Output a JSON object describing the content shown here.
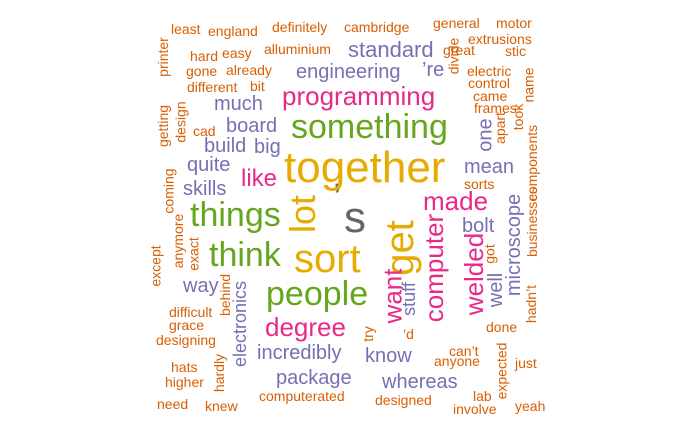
{
  "palette": {
    "gray": "#666666",
    "orange": "#D95F02",
    "purple": "#7570B3",
    "pink": "#E7298A",
    "green": "#66A61E",
    "gold": "#E6AB02"
  },
  "words": [
    {
      "text": "s",
      "color": "gray"
    },
    {
      "text": "’",
      "color": "gray"
    },
    {
      "text": "together",
      "color": "gold"
    },
    {
      "text": "sort",
      "color": "gold"
    },
    {
      "text": "get",
      "color": "gold"
    },
    {
      "text": "lot",
      "color": "gold"
    },
    {
      "text": "something",
      "color": "green"
    },
    {
      "text": "things",
      "color": "green"
    },
    {
      "text": "think",
      "color": "green"
    },
    {
      "text": "people",
      "color": "green"
    },
    {
      "text": "programming",
      "color": "pink"
    },
    {
      "text": "made",
      "color": "pink"
    },
    {
      "text": "computer",
      "color": "pink"
    },
    {
      "text": "welded",
      "color": "pink"
    },
    {
      "text": "want",
      "color": "pink"
    },
    {
      "text": "degree",
      "color": "pink"
    },
    {
      "text": "like",
      "color": "pink"
    },
    {
      "text": "standard",
      "color": "purple"
    },
    {
      "text": "engineering",
      "color": "purple"
    },
    {
      "text": "’re",
      "color": "purple"
    },
    {
      "text": "much",
      "color": "purple"
    },
    {
      "text": "board",
      "color": "purple"
    },
    {
      "text": "build",
      "color": "purple"
    },
    {
      "text": "big",
      "color": "purple"
    },
    {
      "text": "quite",
      "color": "purple"
    },
    {
      "text": "skills",
      "color": "purple"
    },
    {
      "text": "mean",
      "color": "purple"
    },
    {
      "text": "one",
      "color": "purple"
    },
    {
      "text": "bolt",
      "color": "purple"
    },
    {
      "text": "microscope",
      "color": "purple"
    },
    {
      "text": "well",
      "color": "purple"
    },
    {
      "text": "way",
      "color": "purple"
    },
    {
      "text": "electronics",
      "color": "purple"
    },
    {
      "text": "stuff",
      "color": "purple"
    },
    {
      "text": "incredibly",
      "color": "purple"
    },
    {
      "text": "know",
      "color": "purple"
    },
    {
      "text": "package",
      "color": "purple"
    },
    {
      "text": "whereas",
      "color": "purple"
    },
    {
      "text": "least",
      "color": "orange"
    },
    {
      "text": "england",
      "color": "orange"
    },
    {
      "text": "definitely",
      "color": "orange"
    },
    {
      "text": "cambridge",
      "color": "orange"
    },
    {
      "text": "general",
      "color": "orange"
    },
    {
      "text": "motor",
      "color": "orange"
    },
    {
      "text": "printer",
      "color": "orange"
    },
    {
      "text": "hard",
      "color": "orange"
    },
    {
      "text": "easy",
      "color": "orange"
    },
    {
      "text": "alluminium",
      "color": "orange"
    },
    {
      "text": "great",
      "color": "orange"
    },
    {
      "text": "stic",
      "color": "orange"
    },
    {
      "text": "extrusions",
      "color": "orange"
    },
    {
      "text": "gone",
      "color": "orange"
    },
    {
      "text": "already",
      "color": "orange"
    },
    {
      "text": "divide",
      "color": "orange"
    },
    {
      "text": "electric",
      "color": "orange"
    },
    {
      "text": "control",
      "color": "orange"
    },
    {
      "text": "name",
      "color": "orange"
    },
    {
      "text": "different",
      "color": "orange"
    },
    {
      "text": "bit",
      "color": "orange"
    },
    {
      "text": "came",
      "color": "orange"
    },
    {
      "text": "frames",
      "color": "orange"
    },
    {
      "text": "getting",
      "color": "orange"
    },
    {
      "text": "design",
      "color": "orange"
    },
    {
      "text": "cad",
      "color": "orange"
    },
    {
      "text": "apart",
      "color": "orange"
    },
    {
      "text": "took",
      "color": "orange"
    },
    {
      "text": "components",
      "color": "orange"
    },
    {
      "text": "coming",
      "color": "orange"
    },
    {
      "text": "sorts",
      "color": "orange"
    },
    {
      "text": "businesses",
      "color": "orange"
    },
    {
      "text": "anymore",
      "color": "orange"
    },
    {
      "text": "exact",
      "color": "orange"
    },
    {
      "text": "except",
      "color": "orange"
    },
    {
      "text": "got",
      "color": "orange"
    },
    {
      "text": "behind",
      "color": "orange"
    },
    {
      "text": "difficult",
      "color": "orange"
    },
    {
      "text": "grace",
      "color": "orange"
    },
    {
      "text": "designing",
      "color": "orange"
    },
    {
      "text": "hadn’t",
      "color": "orange"
    },
    {
      "text": "done",
      "color": "orange"
    },
    {
      "text": "try",
      "color": "orange"
    },
    {
      "text": "’d",
      "color": "orange"
    },
    {
      "text": "can’t",
      "color": "orange"
    },
    {
      "text": "anyone",
      "color": "orange"
    },
    {
      "text": "expected",
      "color": "orange"
    },
    {
      "text": "just",
      "color": "orange"
    },
    {
      "text": "hats",
      "color": "orange"
    },
    {
      "text": "hardly",
      "color": "orange"
    },
    {
      "text": "higher",
      "color": "orange"
    },
    {
      "text": "lab",
      "color": "orange"
    },
    {
      "text": "need",
      "color": "orange"
    },
    {
      "text": "knew",
      "color": "orange"
    },
    {
      "text": "computerated",
      "color": "orange"
    },
    {
      "text": "designed",
      "color": "orange"
    },
    {
      "text": "involve",
      "color": "orange"
    },
    {
      "text": "yeah",
      "color": "orange"
    }
  ]
}
